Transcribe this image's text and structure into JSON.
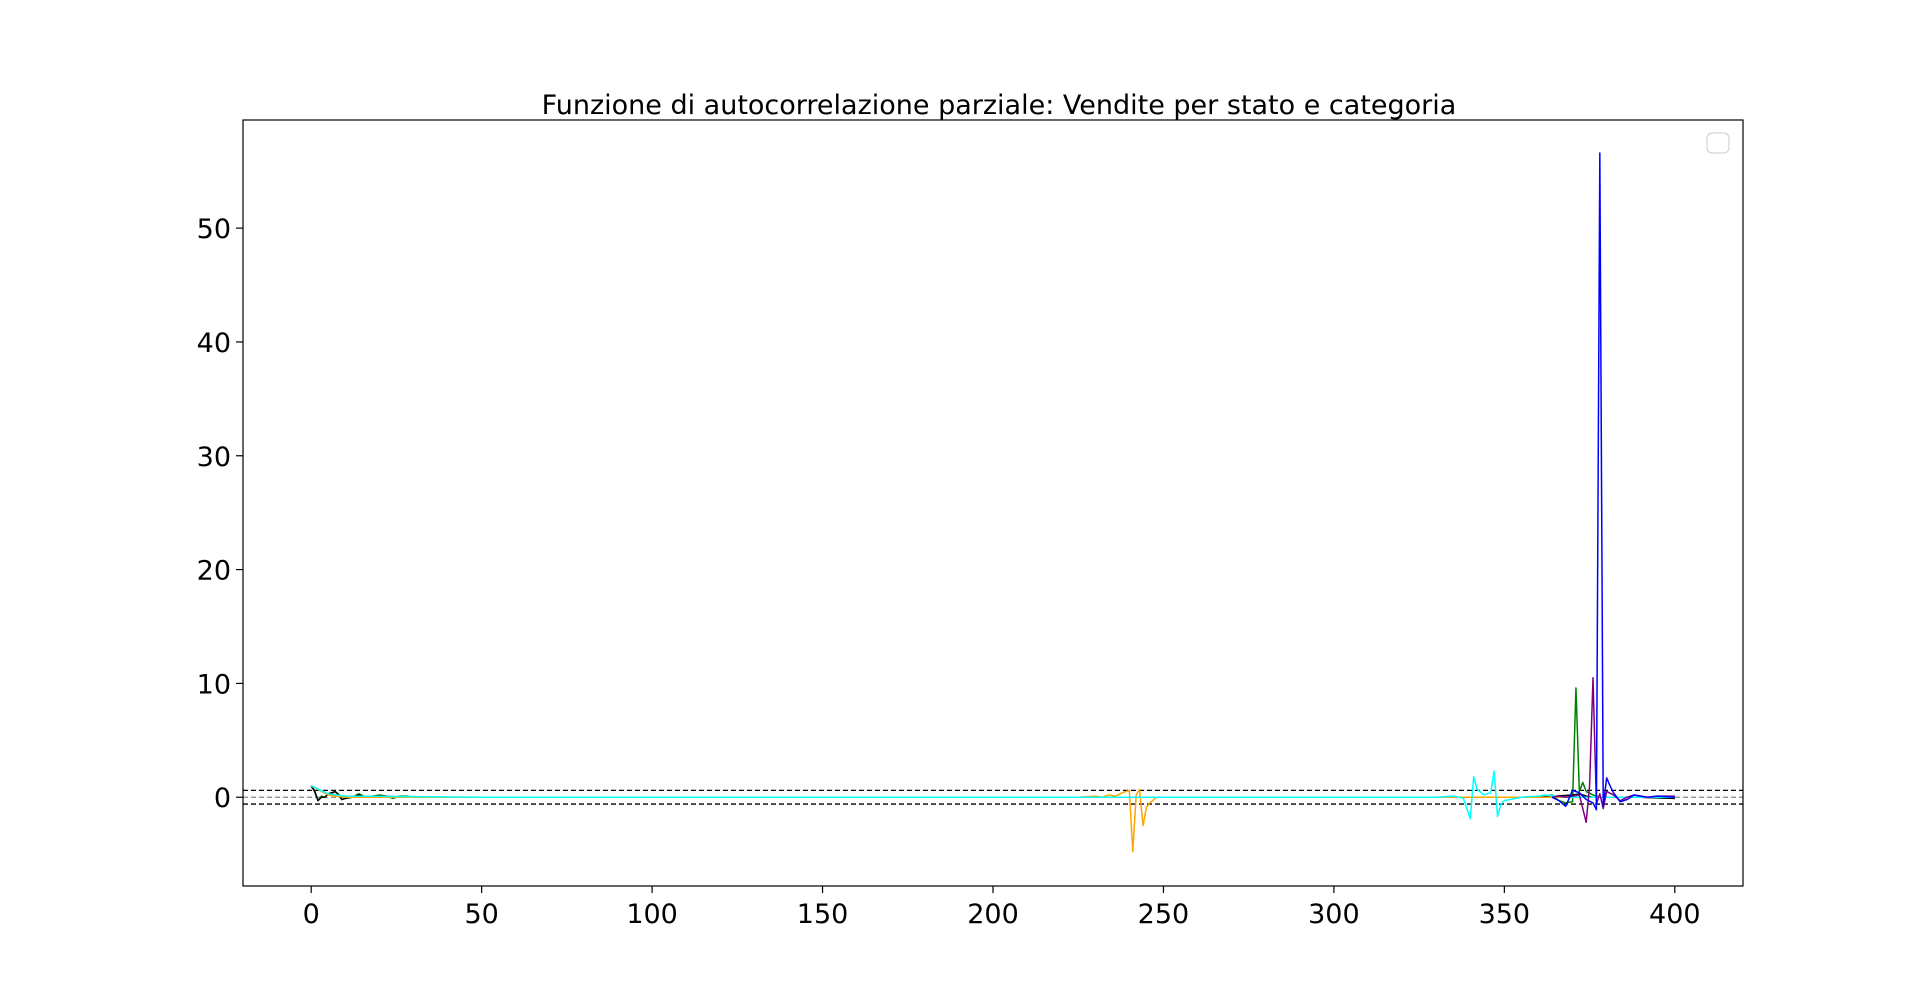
{
  "chart_data": {
    "type": "line",
    "title": "Funzione di autocorrelazione parziale: Vendite per stato e categoria",
    "xlabel": "",
    "ylabel": "",
    "xlim": [
      -20,
      420
    ],
    "ylim": [
      -7.8,
      59.5
    ],
    "x_ticks": [
      0,
      50,
      100,
      150,
      200,
      250,
      300,
      350,
      400
    ],
    "y_ticks": [
      0,
      10,
      20,
      30,
      40,
      50
    ],
    "grid": false,
    "legend": {
      "position": "upper right",
      "entries": []
    },
    "reference_lines": [
      {
        "y": 0.6,
        "style": "dashed",
        "color": "#000000"
      },
      {
        "y": -0.6,
        "style": "dashed",
        "color": "#000000"
      },
      {
        "y": 0,
        "style": "dashed",
        "color": "#888888"
      }
    ],
    "series": [
      {
        "color": "#008000",
        "points": [
          [
            0,
            1.0
          ],
          [
            1,
            0.6
          ],
          [
            2,
            -0.3
          ],
          [
            3,
            0.1
          ],
          [
            4,
            0.0
          ],
          [
            5,
            0.3
          ],
          [
            6,
            0.3
          ],
          [
            7,
            0.5
          ],
          [
            8,
            0.3
          ],
          [
            9,
            -0.2
          ],
          [
            10,
            -0.1
          ],
          [
            12,
            0.0
          ],
          [
            14,
            0.3
          ],
          [
            16,
            0.0
          ],
          [
            18,
            0.1
          ],
          [
            20,
            0.2
          ],
          [
            22,
            0.1
          ],
          [
            24,
            -0.1
          ],
          [
            26,
            0.1
          ],
          [
            28,
            0.1
          ],
          [
            30,
            0.0
          ],
          [
            40,
            0.0
          ],
          [
            60,
            0.0
          ],
          [
            100,
            0.0
          ],
          [
            150,
            0.0
          ],
          [
            200,
            0.0
          ],
          [
            240,
            0.0
          ],
          [
            300,
            0.0
          ],
          [
            340,
            0.0
          ],
          [
            360,
            0.0
          ],
          [
            364,
            0.2
          ],
          [
            366,
            -0.3
          ],
          [
            368,
            -0.5
          ],
          [
            370,
            -0.4
          ],
          [
            371,
            9.6
          ],
          [
            372,
            0.5
          ],
          [
            373,
            1.3
          ],
          [
            374,
            0.5
          ],
          [
            376,
            0.2
          ],
          [
            378,
            0.0
          ],
          [
            380,
            0.0
          ],
          [
            390,
            0.0
          ],
          [
            400,
            -0.1
          ]
        ]
      },
      {
        "color": "#000000",
        "points": [
          [
            0,
            1.0
          ],
          [
            1,
            0.5
          ],
          [
            2,
            -0.3
          ],
          [
            3,
            0.0
          ],
          [
            4,
            0.0
          ],
          [
            5,
            0.3
          ],
          [
            6,
            0.4
          ],
          [
            7,
            0.5
          ],
          [
            8,
            0.2
          ],
          [
            9,
            -0.2
          ],
          [
            10,
            -0.1
          ],
          [
            12,
            0.0
          ],
          [
            14,
            0.2
          ],
          [
            16,
            0.0
          ],
          [
            20,
            0.1
          ],
          [
            30,
            0.0
          ],
          [
            100,
            0.0
          ],
          [
            200,
            0.0
          ],
          [
            300,
            0.0
          ],
          [
            360,
            0.0
          ],
          [
            370,
            0.2
          ],
          [
            372,
            0.3
          ],
          [
            374,
            0.1
          ],
          [
            376,
            0.0
          ],
          [
            380,
            0.0
          ],
          [
            390,
            0.0
          ],
          [
            400,
            -0.1
          ]
        ]
      },
      {
        "color": "#FFA500",
        "points": [
          [
            0,
            1.0
          ],
          [
            5,
            0.2
          ],
          [
            10,
            0.0
          ],
          [
            50,
            0.0
          ],
          [
            100,
            0.0
          ],
          [
            200,
            0.0
          ],
          [
            225,
            0.0
          ],
          [
            230,
            0.1
          ],
          [
            232,
            0.0
          ],
          [
            234,
            0.2
          ],
          [
            236,
            0.1
          ],
          [
            238,
            0.4
          ],
          [
            240,
            0.6
          ],
          [
            241,
            -4.8
          ],
          [
            242,
            0.2
          ],
          [
            243,
            0.7
          ],
          [
            244,
            -2.5
          ],
          [
            245,
            -0.9
          ],
          [
            246,
            -0.5
          ],
          [
            248,
            0.0
          ],
          [
            250,
            0.0
          ],
          [
            260,
            0.0
          ],
          [
            300,
            0.0
          ],
          [
            350,
            0.0
          ],
          [
            400,
            0.0
          ]
        ]
      },
      {
        "color": "#00FFFF",
        "points": [
          [
            0,
            1.0
          ],
          [
            5,
            0.3
          ],
          [
            10,
            0.1
          ],
          [
            50,
            0.0
          ],
          [
            100,
            0.0
          ],
          [
            200,
            0.0
          ],
          [
            300,
            0.0
          ],
          [
            330,
            0.0
          ],
          [
            335,
            0.1
          ],
          [
            338,
            -0.1
          ],
          [
            340,
            -1.9
          ],
          [
            341,
            1.8
          ],
          [
            342,
            0.7
          ],
          [
            344,
            0.2
          ],
          [
            346,
            0.4
          ],
          [
            347,
            2.3
          ],
          [
            348,
            -1.7
          ],
          [
            349,
            -0.6
          ],
          [
            350,
            -0.3
          ],
          [
            355,
            0.0
          ],
          [
            360,
            0.1
          ],
          [
            362,
            0.2
          ],
          [
            365,
            0.1
          ],
          [
            368,
            0.0
          ],
          [
            370,
            0.0
          ],
          [
            380,
            0.0
          ],
          [
            390,
            0.0
          ],
          [
            400,
            0.0
          ]
        ]
      },
      {
        "color": "#800080",
        "points": [
          [
            364,
            0.0
          ],
          [
            366,
            0.1
          ],
          [
            368,
            0.0
          ],
          [
            370,
            0.1
          ],
          [
            372,
            0.2
          ],
          [
            373,
            -1.0
          ],
          [
            374,
            -2.2
          ],
          [
            375,
            1.0
          ],
          [
            376,
            10.5
          ],
          [
            377,
            -0.6
          ],
          [
            378,
            0.3
          ],
          [
            379,
            -1.0
          ],
          [
            380,
            0.5
          ],
          [
            382,
            0.2
          ],
          [
            384,
            -0.3
          ],
          [
            386,
            0.0
          ],
          [
            388,
            0.2
          ],
          [
            390,
            0.1
          ],
          [
            392,
            0.0
          ],
          [
            395,
            0.1
          ],
          [
            400,
            0.1
          ]
        ]
      },
      {
        "color": "#0000FF",
        "points": [
          [
            364,
            0.0
          ],
          [
            366,
            -0.3
          ],
          [
            368,
            -0.8
          ],
          [
            370,
            0.6
          ],
          [
            372,
            0.4
          ],
          [
            374,
            -0.2
          ],
          [
            376,
            -0.5
          ],
          [
            377,
            -1.1
          ],
          [
            378,
            56.6
          ],
          [
            379,
            -0.8
          ],
          [
            380,
            1.7
          ],
          [
            381,
            1.0
          ],
          [
            382,
            0.4
          ],
          [
            384,
            -0.4
          ],
          [
            386,
            -0.2
          ],
          [
            388,
            0.2
          ],
          [
            390,
            0.1
          ],
          [
            392,
            0.0
          ],
          [
            395,
            0.1
          ],
          [
            400,
            0.0
          ]
        ]
      }
    ]
  }
}
